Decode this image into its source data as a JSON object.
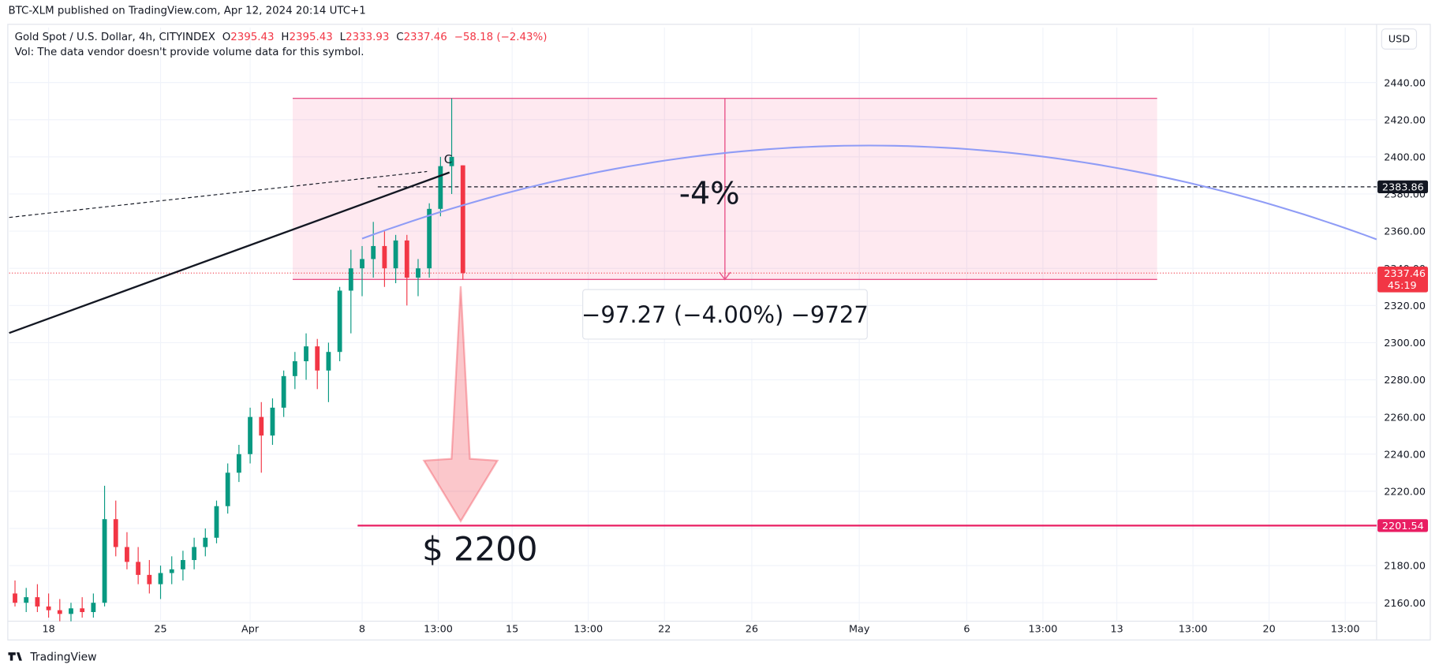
{
  "header": {
    "published": "BTC-XLM published on TradingView.com, Apr 12, 2024 20:14 UTC+1",
    "currency": "USD",
    "footer": "TradingView"
  },
  "chart_data": {
    "type": "candlestick",
    "title": "Gold Spot / U.S. Dollar, 4h, CITYINDEX",
    "ohlc_legend": [
      {
        "label": "O",
        "value": 2395.43
      },
      {
        "label": "H",
        "value": 2395.43
      },
      {
        "label": "L",
        "value": 2333.93
      },
      {
        "label": "C",
        "value": 2337.46
      }
    ],
    "change": "−58.18 (−2.43%)",
    "volume_note": "Vol: The data vendor doesn't provide volume data for this symbol.",
    "up_color": "#089981",
    "down_color": "#f23645",
    "grid": true,
    "x": [
      -1.5,
      -1,
      -0.5,
      0,
      0.5,
      1,
      1.5,
      2,
      2.5,
      3,
      3.5,
      4,
      4.5,
      5,
      5.5,
      6,
      6.5,
      7,
      7.5,
      8,
      8.5,
      9,
      9.5,
      10,
      10.5,
      11,
      11.5,
      12,
      12.5,
      13,
      13.5,
      14,
      14.5,
      15,
      15.5,
      16,
      16.5,
      17,
      17.5,
      18,
      18.5
    ],
    "open": [
      2165,
      2160,
      2163,
      2158,
      2156,
      2154,
      2157,
      2155,
      2160,
      2205,
      2190,
      2182,
      2175,
      2170,
      2176,
      2178,
      2183,
      2190,
      2195,
      2212,
      2230,
      2240,
      2260,
      2250,
      2265,
      2282,
      2290,
      2298,
      2285,
      2295,
      2328,
      2340,
      2345,
      2352,
      2340,
      2355,
      2335,
      2340,
      2372,
      2395,
      2395.43
    ],
    "high": [
      2172,
      2168,
      2170,
      2165,
      2162,
      2160,
      2163,
      2165,
      2223,
      2215,
      2198,
      2190,
      2183,
      2180,
      2185,
      2188,
      2195,
      2200,
      2215,
      2235,
      2245,
      2265,
      2268,
      2270,
      2285,
      2295,
      2305,
      2302,
      2300,
      2330,
      2350,
      2352,
      2365,
      2360,
      2358,
      2358,
      2345,
      2375,
      2400,
      2431.5,
      2395.43
    ],
    "low": [
      2158,
      2155,
      2155,
      2152,
      2150,
      2150,
      2152,
      2152,
      2158,
      2185,
      2178,
      2170,
      2165,
      2162,
      2170,
      2172,
      2178,
      2185,
      2192,
      2208,
      2225,
      2235,
      2230,
      2245,
      2260,
      2275,
      2280,
      2275,
      2268,
      2290,
      2305,
      2325,
      2335,
      2330,
      2332,
      2320,
      2325,
      2335,
      2368,
      2380,
      2333.93
    ],
    "close": [
      2160,
      2163,
      2158,
      2156,
      2154,
      2157,
      2155,
      2160,
      2205,
      2190,
      2182,
      2175,
      2170,
      2176,
      2178,
      2183,
      2190,
      2195,
      2212,
      2230,
      2240,
      2260,
      2250,
      2265,
      2282,
      2290,
      2298,
      2285,
      2295,
      2328,
      2340,
      2345,
      2352,
      2340,
      2355,
      2335,
      2340,
      2372,
      2395,
      2400,
      2337.46
    ],
    "xlim": [
      -1.76,
      59.3
    ],
    "xticks": [
      {
        "value": 0,
        "label": "18"
      },
      {
        "value": 5,
        "label": "25"
      },
      {
        "value": 9,
        "label": "Apr"
      },
      {
        "value": 14,
        "label": "8"
      },
      {
        "value": 17.4,
        "label": "13:00"
      },
      {
        "value": 20.7,
        "label": "15"
      },
      {
        "value": 24.1,
        "label": "13:00"
      },
      {
        "value": 27.5,
        "label": "22"
      },
      {
        "value": 31.4,
        "label": "26"
      },
      {
        "value": 36.2,
        "label": "May"
      },
      {
        "value": 41,
        "label": "6"
      },
      {
        "value": 44.4,
        "label": "13:00"
      },
      {
        "value": 47.7,
        "label": "13"
      },
      {
        "value": 51.1,
        "label": "13:00"
      },
      {
        "value": 54.5,
        "label": "20"
      },
      {
        "value": 57.9,
        "label": "13:00"
      }
    ],
    "ylim": [
      2150.1,
      2469.6
    ],
    "yticks": [
      {
        "value": 2160,
        "label": "2160.00"
      },
      {
        "value": 2180,
        "label": "2180.00"
      },
      {
        "value": 2200,
        "label": "2200.00"
      },
      {
        "value": 2220,
        "label": "2220.00"
      },
      {
        "value": 2240,
        "label": "2240.00"
      },
      {
        "value": 2260,
        "label": "2260.00"
      },
      {
        "value": 2280,
        "label": "2280.00"
      },
      {
        "value": 2300,
        "label": "2300.00"
      },
      {
        "value": 2320,
        "label": "2320.00"
      },
      {
        "value": 2340,
        "label": "2340.00"
      },
      {
        "value": 2360,
        "label": "2360.00"
      },
      {
        "value": 2380,
        "label": "2380.00"
      },
      {
        "value": 2400,
        "label": "2400.00"
      },
      {
        "value": 2420,
        "label": "2420.00"
      },
      {
        "value": 2440,
        "label": "2440.00"
      }
    ],
    "drawings": {
      "range_box": {
        "x": [
          10.9,
          49.5
        ],
        "y": [
          2431.5,
          2334
        ],
        "arrow_x": 30.2,
        "label": "-4%",
        "measure": "−97.27 (−4.00%) −9727"
      },
      "trend_line": {
        "x": [
          -1.76,
          17.9
        ],
        "y": [
          2305.2,
          2391.6
        ]
      },
      "dashed_line": {
        "x": [
          -1.76,
          16.9
        ],
        "y": [
          2367.4,
          2392.1
        ]
      },
      "arc": {
        "x": [
          14,
          29.4,
          59.3
        ],
        "y": [
          2356,
          2401,
          2355.6
        ]
      },
      "pattern_label": "C",
      "level": {
        "x": 14.7,
        "value": 2383.86
      },
      "target": {
        "x": 13.8,
        "value": 2201.54,
        "label": "$ 2200"
      },
      "last_price": {
        "value": 2337.46,
        "countdown": "45:19"
      }
    }
  }
}
